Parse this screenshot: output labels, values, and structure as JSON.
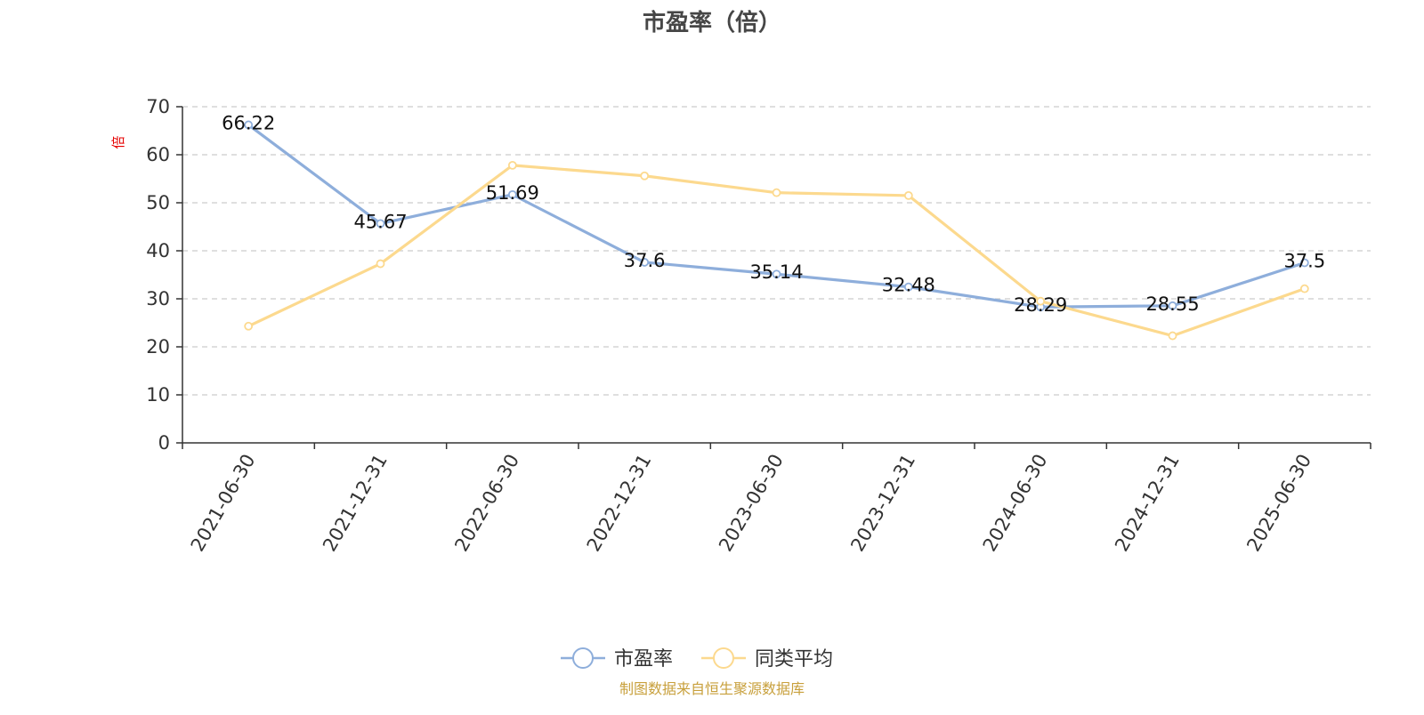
{
  "chart_data": {
    "type": "line",
    "title": "市盈率（倍）",
    "ylabel": "倍",
    "ylim": [
      0,
      70
    ],
    "yticks": [
      0,
      10,
      20,
      30,
      40,
      50,
      60,
      70
    ],
    "grid": true,
    "legend_position": "bottom",
    "categories": [
      "2021-06-30",
      "2021-12-31",
      "2022-06-30",
      "2022-12-31",
      "2023-06-30",
      "2023-12-31",
      "2024-06-30",
      "2024-12-31",
      "2025-06-30"
    ],
    "series": [
      {
        "name": "市盈率",
        "color": "#8eaedb",
        "values": [
          66.22,
          45.67,
          51.69,
          37.6,
          35.14,
          32.48,
          28.29,
          28.55,
          37.5
        ],
        "value_labels": [
          "66.22",
          "45.67",
          "51.69",
          "37.6",
          "35.14",
          "32.48",
          "28.29",
          "28.55",
          "37.5"
        ]
      },
      {
        "name": "同类平均",
        "color": "#fcd98e",
        "values": [
          24.3,
          37.3,
          57.8,
          55.6,
          52.1,
          51.5,
          29.5,
          22.3,
          32.1
        ]
      }
    ],
    "source_note": "制图数据来自恒生聚源数据库",
    "colors": {
      "axis": "#333333",
      "grid": "#cccccc",
      "ylabel": "#e60000",
      "source_note": "#c8a03c",
      "title": "#464646"
    }
  }
}
